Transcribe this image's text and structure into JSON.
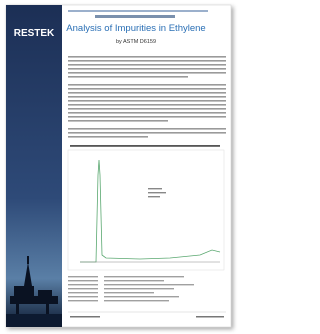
{
  "header": {
    "brand": "RESTEK",
    "title": "Analysis of Impurities in Ethylene",
    "subtitle": "by ASTM D6159"
  }
}
